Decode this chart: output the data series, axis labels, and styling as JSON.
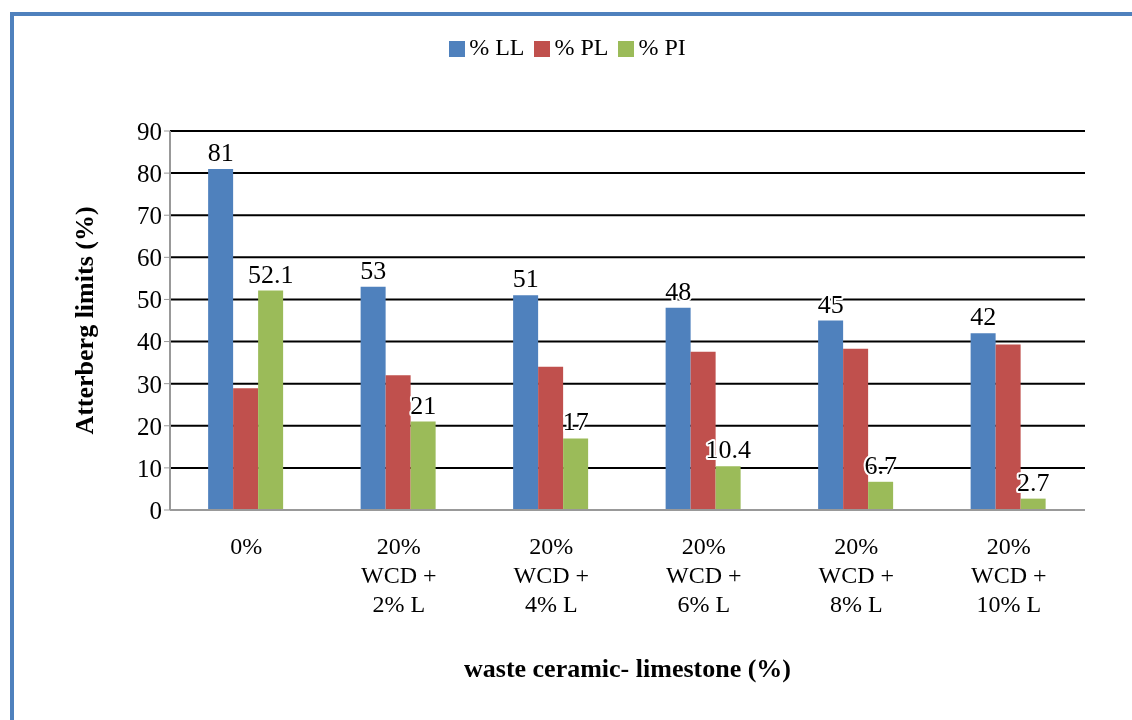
{
  "chart_data": {
    "type": "bar",
    "xlabel": "waste ceramic- limestone (%)",
    "ylabel": "Atterberg limits (%)",
    "categories": [
      "0%",
      "20% WCD + 2% L",
      "20% WCD + 4% L",
      "20% WCD + 6% L",
      "20% WCD + 8% L",
      "20% WCD + 10% L"
    ],
    "series": [
      {
        "name": "% LL",
        "color": "#4f81bd",
        "values": [
          81,
          53,
          51,
          48,
          45,
          42
        ],
        "value_labels": [
          "81",
          "53",
          "51",
          "48",
          "45",
          "42"
        ]
      },
      {
        "name": "% PL",
        "color": "#c0504d",
        "values": [
          28.9,
          32,
          34,
          37.6,
          38.3,
          39.3
        ]
      },
      {
        "name": "% PI",
        "color": "#9bbb59",
        "values": [
          52.1,
          21,
          17,
          10.4,
          6.7,
          2.7
        ],
        "value_labels": [
          "52.1",
          "21",
          "17",
          "10.4",
          "6.7",
          "2.7"
        ]
      }
    ],
    "ylim": [
      0,
      90
    ],
    "yticks": [
      0,
      10,
      20,
      30,
      40,
      50,
      60,
      70,
      80,
      90
    ],
    "grid": "y",
    "legend": "top"
  }
}
